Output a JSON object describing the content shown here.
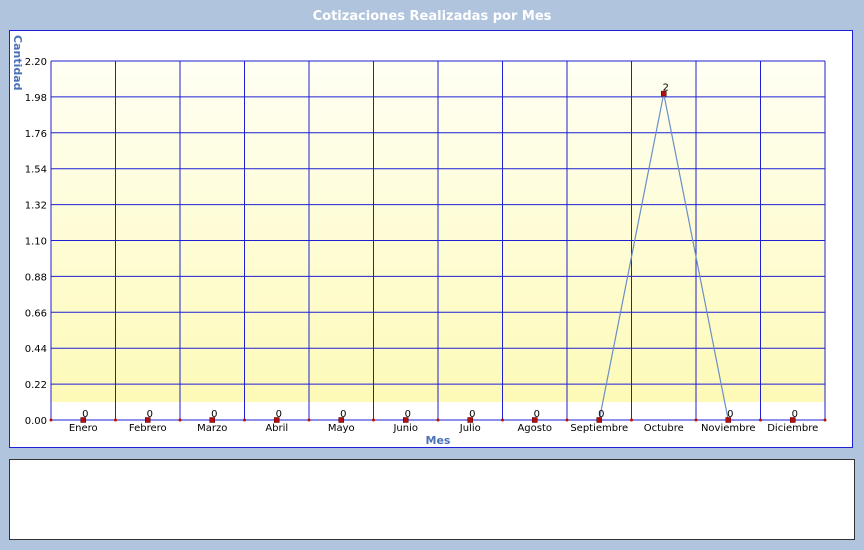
{
  "title": "Cotizaciones Realizadas por Mes",
  "colors": {
    "background": "#b0c4de",
    "grid": "#1f1fd6",
    "line": "#6b8fc4",
    "marker": "#b01010",
    "axis_title": "#4a72b8",
    "plot_top": "#fffff4",
    "plot_bottom": "#fdfab8"
  },
  "chart_data": {
    "type": "line",
    "title": "Cotizaciones Realizadas por Mes",
    "xlabel": "Mes",
    "ylabel": "Cantidad",
    "categories": [
      "Enero",
      "Febrero",
      "Marzo",
      "Abril",
      "Mayo",
      "Junio",
      "Julio",
      "Agosto",
      "Septiembre",
      "Octubre",
      "Noviembre",
      "Diciembre"
    ],
    "values": [
      0,
      0,
      0,
      0,
      0,
      0,
      0,
      0,
      0,
      2,
      0,
      0
    ],
    "ylim": [
      0,
      2.2
    ],
    "yticks": [
      "0.00",
      "0.22",
      "0.44",
      "0.66",
      "0.88",
      "1.10",
      "1.32",
      "1.54",
      "1.76",
      "1.98",
      "2.20"
    ],
    "data_labels": [
      "0",
      "0",
      "0",
      "0",
      "0",
      "0",
      "0",
      "0",
      "0",
      "2",
      "0",
      "0"
    ],
    "grid": true,
    "legend": "none"
  }
}
